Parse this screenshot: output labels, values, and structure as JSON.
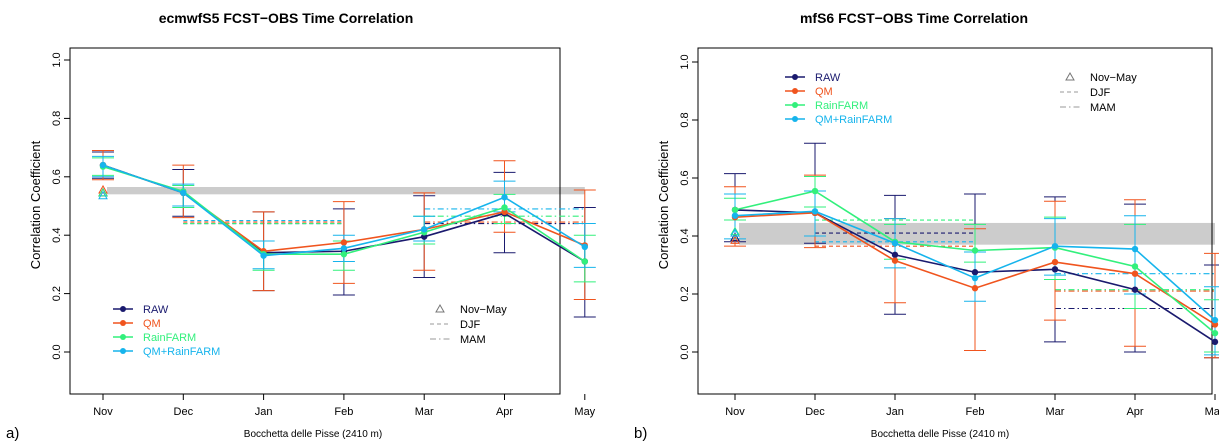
{
  "colors": {
    "RAW": "#1a1a6e",
    "QM": "#f0541e",
    "RainFARM": "#32f07c",
    "QM+RainFARM": "#16b4ec",
    "band": "#cccccc"
  },
  "chart_data": [
    {
      "panel_label": "a)",
      "type": "line",
      "title": "ecmwfS5 FCST−OBS Time Correlation",
      "xlabel": "Bocchetta delle Pisse (2410 m)",
      "ylabel": "Correlation Coefficient",
      "categories": [
        "Nov",
        "Dec",
        "Jan",
        "Feb",
        "Mar",
        "Apr",
        "May"
      ],
      "yticks": [
        "0.0",
        "0.2",
        "0.4",
        "0.6",
        "0.8",
        "1.0"
      ],
      "ylim": [
        -0.03,
        1.03
      ],
      "legend_position": "bottom-left",
      "legend_series": [
        "RAW",
        "QM",
        "RainFARM",
        "QM+RainFARM"
      ],
      "legend_seasons": [
        "Nov−May",
        "DJF",
        "MAM"
      ],
      "gray_band": [
        0.54,
        0.565
      ],
      "series": [
        {
          "name": "RAW",
          "values": [
            0.64,
            0.545,
            0.34,
            0.345,
            0.395,
            0.475,
            0.31
          ],
          "lo": [
            0.595,
            0.465,
            0.21,
            0.195,
            0.255,
            0.34,
            0.12
          ],
          "hi": [
            0.685,
            0.625,
            0.48,
            0.49,
            0.535,
            0.615,
            0.495
          ],
          "nov_may": 0.545,
          "djf": [
            0.44,
            "Dec",
            "Feb"
          ],
          "mam": [
            0.44,
            "Mar",
            "May"
          ]
        },
        {
          "name": "QM",
          "values": [
            0.64,
            0.545,
            0.345,
            0.375,
            0.42,
            0.48,
            0.365
          ],
          "lo": [
            0.59,
            0.46,
            0.21,
            0.235,
            0.28,
            0.41,
            0.18
          ],
          "hi": [
            0.69,
            0.64,
            0.48,
            0.515,
            0.545,
            0.655,
            0.555
          ],
          "nov_may": 0.555,
          "djf": [
            0.445,
            "Dec",
            "Feb"
          ],
          "mam": [
            0.445,
            "Mar",
            "May"
          ]
        },
        {
          "name": "RainFARM",
          "values": [
            0.635,
            0.55,
            0.335,
            0.335,
            0.41,
            0.495,
            0.31
          ],
          "lo": [
            0.605,
            0.495,
            0.28,
            0.28,
            0.37,
            0.44,
            0.24
          ],
          "hi": [
            0.665,
            0.57,
            0.38,
            0.38,
            0.465,
            0.54,
            0.4
          ],
          "nov_may": 0.545,
          "djf": [
            0.44,
            "Dec",
            "Feb"
          ],
          "mam": [
            0.465,
            "Mar",
            "May"
          ]
        },
        {
          "name": "QM+RainFARM",
          "values": [
            0.64,
            0.545,
            0.33,
            0.355,
            0.42,
            0.53,
            0.36
          ],
          "lo": [
            0.6,
            0.5,
            0.285,
            0.31,
            0.38,
            0.48,
            0.29
          ],
          "hi": [
            0.67,
            0.575,
            0.38,
            0.4,
            0.465,
            0.585,
            0.44
          ],
          "nov_may": 0.535,
          "djf": [
            0.45,
            "Dec",
            "Feb"
          ],
          "mam": [
            0.49,
            "Mar",
            "May"
          ]
        }
      ]
    },
    {
      "panel_label": "b)",
      "type": "line",
      "title": "mfS6 FCST−OBS Time Correlation",
      "xlabel": "Bocchetta delle Pisse (2410 m)",
      "ylabel": "Correlation Coefficient",
      "categories": [
        "Nov",
        "Dec",
        "Jan",
        "Feb",
        "Mar",
        "Apr",
        "May"
      ],
      "yticks": [
        "0.0",
        "0.2",
        "0.4",
        "0.6",
        "0.8",
        "1.0"
      ],
      "ylim": [
        -0.03,
        1.03
      ],
      "legend_position": "top-left",
      "legend_series": [
        "RAW",
        "QM",
        "RainFARM",
        "QM+RainFARM"
      ],
      "legend_seasons": [
        "Nov−May",
        "DJF",
        "MAM"
      ],
      "gray_band": [
        0.37,
        0.445
      ],
      "series": [
        {
          "name": "RAW",
          "values": [
            0.49,
            0.48,
            0.335,
            0.275,
            0.285,
            0.215,
            0.035
          ],
          "lo": [
            0.38,
            0.375,
            0.13,
            0.005,
            0.035,
            0.0,
            -0.02
          ],
          "hi": [
            0.615,
            0.72,
            0.54,
            0.545,
            0.535,
            0.51,
            0.3
          ],
          "nov_may": 0.395,
          "djf": [
            0.41,
            "Dec",
            "Feb"
          ],
          "mam": [
            0.15,
            "Mar",
            "May"
          ]
        },
        {
          "name": "QM",
          "values": [
            0.465,
            0.48,
            0.315,
            0.22,
            0.31,
            0.27,
            0.095
          ],
          "lo": [
            0.365,
            0.36,
            0.17,
            0.005,
            0.11,
            0.02,
            -0.02
          ],
          "hi": [
            0.57,
            0.61,
            0.46,
            0.425,
            0.52,
            0.525,
            0.34
          ],
          "nov_may": 0.385,
          "djf": [
            0.365,
            "Dec",
            "Feb"
          ],
          "mam": [
            0.21,
            "Mar",
            "May"
          ]
        },
        {
          "name": "RainFARM",
          "values": [
            0.49,
            0.555,
            0.38,
            0.35,
            0.36,
            0.295,
            0.065
          ],
          "lo": [
            0.455,
            0.5,
            0.32,
            0.31,
            0.25,
            0.15,
            0.0
          ],
          "hi": [
            0.53,
            0.605,
            0.44,
            0.44,
            0.465,
            0.44,
            0.18
          ],
          "nov_may": 0.415,
          "djf": [
            0.455,
            "Dec",
            "Feb"
          ],
          "mam": [
            0.215,
            "Mar",
            "May"
          ]
        },
        {
          "name": "QM+RainFARM",
          "values": [
            0.47,
            0.485,
            0.375,
            0.255,
            0.365,
            0.355,
            0.11
          ],
          "lo": [
            0.39,
            0.4,
            0.29,
            0.175,
            0.265,
            0.2,
            -0.01
          ],
          "hi": [
            0.545,
            0.555,
            0.46,
            0.345,
            0.46,
            0.47,
            0.225
          ],
          "nov_may": 0.41,
          "djf": [
            0.38,
            "Dec",
            "Feb"
          ],
          "mam": [
            0.27,
            "Mar",
            "May"
          ]
        }
      ]
    }
  ]
}
